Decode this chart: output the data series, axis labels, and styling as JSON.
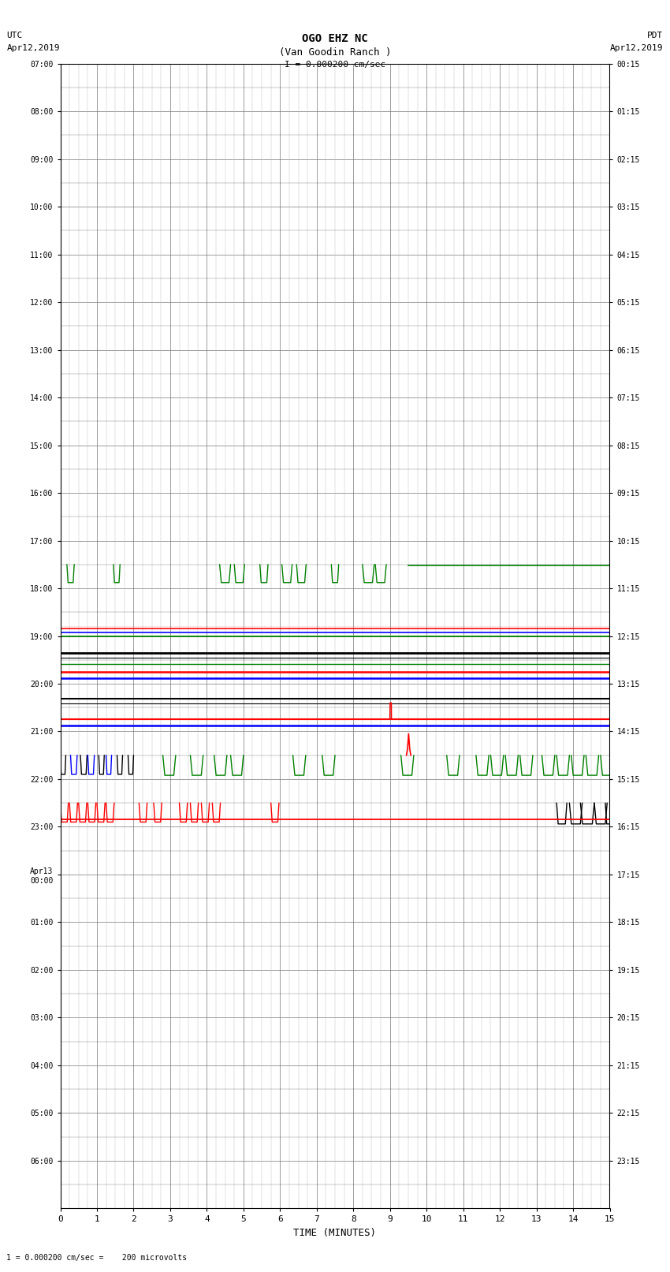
{
  "title_line1": "OGO EHZ NC",
  "title_line2": "(Van Goodin Ranch )",
  "title_line3": "I = 0.000200 cm/sec",
  "left_label_top": "UTC",
  "left_label_date": "Apr12,2019",
  "right_label_top": "PDT",
  "right_label_date": "Apr12,2019",
  "bottom_label": "TIME (MINUTES)",
  "footer_text": "1 = 0.000200 cm/sec =    200 microvolts",
  "bg_color": "#ffffff",
  "left_time_labels": [
    "07:00",
    "08:00",
    "09:00",
    "10:00",
    "11:00",
    "12:00",
    "13:00",
    "14:00",
    "15:00",
    "16:00",
    "17:00",
    "18:00",
    "19:00",
    "20:00",
    "21:00",
    "22:00",
    "23:00",
    "Apr13\n00:00",
    "01:00",
    "02:00",
    "03:00",
    "04:00",
    "05:00",
    "06:00"
  ],
  "right_time_labels": [
    "00:15",
    "01:15",
    "02:15",
    "03:15",
    "04:15",
    "05:15",
    "06:15",
    "07:15",
    "08:15",
    "09:15",
    "10:15",
    "11:15",
    "12:15",
    "13:15",
    "14:15",
    "15:15",
    "16:15",
    "17:15",
    "18:15",
    "19:15",
    "20:15",
    "21:15",
    "22:15",
    "23:15"
  ],
  "n_rows": 24,
  "x_min": 0,
  "x_max": 15,
  "x_ticks": [
    0,
    1,
    2,
    3,
    4,
    5,
    6,
    7,
    8,
    9,
    10,
    11,
    12,
    13,
    14,
    15
  ]
}
